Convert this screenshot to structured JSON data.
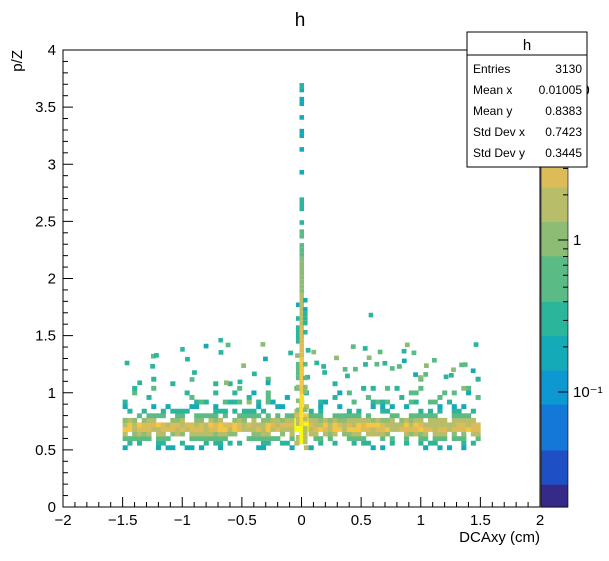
{
  "chart_data": {
    "type": "heatmap",
    "title": "h",
    "xlabel": "DCAxy (cm)",
    "ylabel": "p/Z",
    "xlim": [
      -2,
      2
    ],
    "ylim": [
      0,
      4
    ],
    "x_ticks": [
      "−2",
      "−1.5",
      "−1",
      "−0.5",
      "0",
      "0.5",
      "1",
      "1.5",
      "2"
    ],
    "x_tick_values": [
      -2,
      -1.5,
      -1,
      -0.5,
      0,
      0.5,
      1,
      1.5,
      2
    ],
    "y_ticks": [
      "0",
      "0.5",
      "1",
      "1.5",
      "2",
      "2.5",
      "3",
      "3.5",
      "4"
    ],
    "y_tick_values": [
      0,
      0.5,
      1,
      1.5,
      2,
      2.5,
      3,
      3.5,
      4
    ],
    "z_scale": "log",
    "colorbar_ticks": [
      "10",
      "1",
      "10⁻¹"
    ],
    "colorbar_tick_values": [
      10,
      1,
      0.1
    ],
    "palette": [
      "#352a87",
      "#1f4fc4",
      "#1478d8",
      "#0e98d2",
      "#14aab8",
      "#2bb59b",
      "#5bbb84",
      "#8dbd74",
      "#b8bd69",
      "#dcbc58",
      "#f3c745",
      "#fadf2a",
      "#f9fb0e"
    ],
    "stats": {
      "title": "h",
      "rows": [
        {
          "label": "Entries",
          "value": "3130"
        },
        {
          "label": "Mean x",
          "value": "0.01005"
        },
        {
          "label": "Mean y",
          "value": "0.8383"
        },
        {
          "label": "Std Dev x",
          "value": "0.7423"
        },
        {
          "label": "Std Dev y",
          "value": "0.3445"
        }
      ]
    },
    "distribution": {
      "band": {
        "x_range": [
          -1.5,
          1.5
        ],
        "y_range": [
          0.55,
          1.08
        ],
        "peak_y": 0.68
      },
      "spike": {
        "x_center": 0.0,
        "y_max": 3.7
      }
    }
  }
}
